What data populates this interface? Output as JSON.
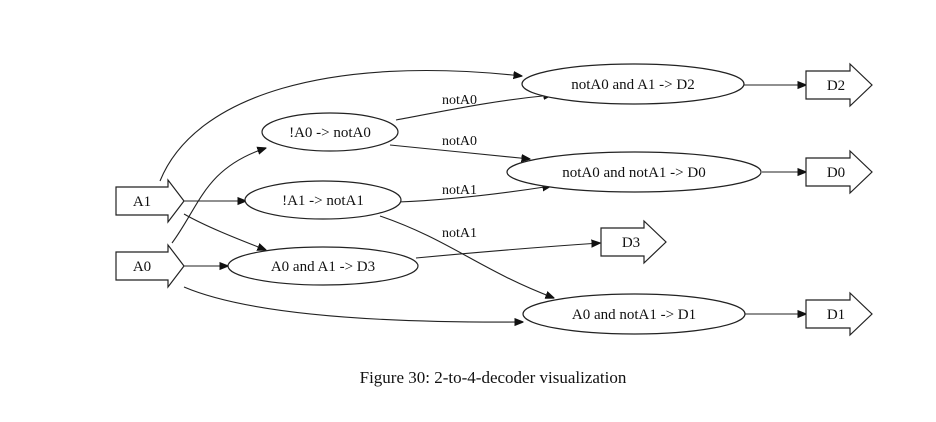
{
  "nodes": {
    "a1": "A1",
    "a0": "A0",
    "not_a0": "!A0 -> notA0",
    "not_a1": "!A1 -> notA1",
    "a0_and_a1": "A0 and A1 -> D3",
    "nota0_and_a1": "notA0 and A1 -> D2",
    "nota0_and_nota1": "notA0 and notA1 -> D0",
    "a0_and_nota1": "A0 and notA1 -> D1",
    "d2": "D2",
    "d0": "D0",
    "d3": "D3",
    "d1": "D1"
  },
  "edge_labels": {
    "nota0_upper": "notA0",
    "nota0_lower": "notA0",
    "nota1_upper": "notA1",
    "nota1_lower": "notA1"
  },
  "caption": "Figure 30: 2-to-4-decoder visualization"
}
